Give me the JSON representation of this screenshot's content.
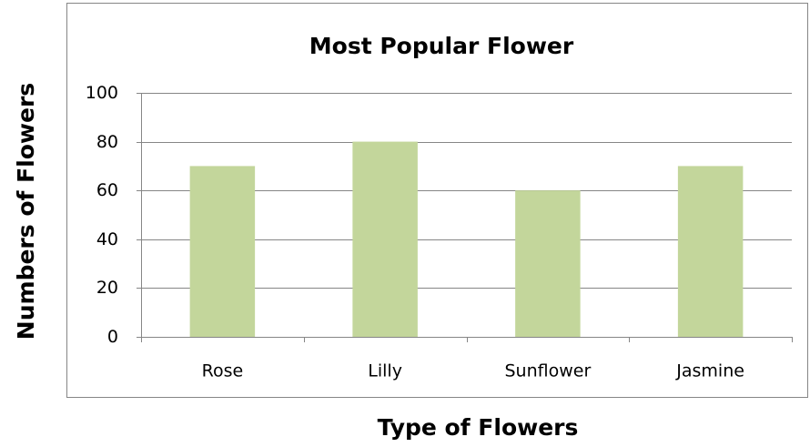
{
  "chart_data": {
    "type": "bar",
    "title": "Most Popular Flower",
    "x_label": "Type of Flowers",
    "y_label": "Numbers of Flowers",
    "categories": [
      "Rose",
      "Lilly",
      "Sunflower",
      "Jasmine"
    ],
    "values": [
      70,
      80,
      60,
      70
    ],
    "color": "#c3d69b",
    "ylim": [
      0,
      100
    ],
    "yticks": [
      0,
      20,
      40,
      60,
      80,
      100
    ],
    "grid": true
  }
}
